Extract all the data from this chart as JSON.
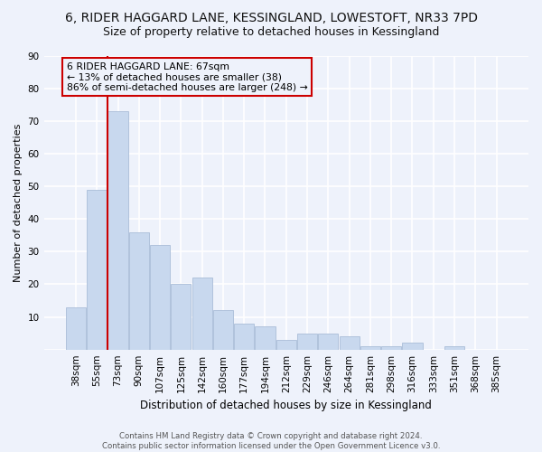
{
  "title": "6, RIDER HAGGARD LANE, KESSINGLAND, LOWESTOFT, NR33 7PD",
  "subtitle": "Size of property relative to detached houses in Kessingland",
  "xlabel": "Distribution of detached houses by size in Kessingland",
  "ylabel": "Number of detached properties",
  "categories": [
    "38sqm",
    "55sqm",
    "73sqm",
    "90sqm",
    "107sqm",
    "125sqm",
    "142sqm",
    "160sqm",
    "177sqm",
    "194sqm",
    "212sqm",
    "229sqm",
    "246sqm",
    "264sqm",
    "281sqm",
    "298sqm",
    "316sqm",
    "333sqm",
    "351sqm",
    "368sqm",
    "385sqm"
  ],
  "values": [
    13,
    49,
    73,
    36,
    32,
    20,
    22,
    12,
    8,
    7,
    3,
    5,
    5,
    4,
    1,
    1,
    2,
    0,
    1,
    0,
    0
  ],
  "bar_color": "#c8d8ee",
  "bar_edge_color": "#aabdd8",
  "vline_x_index": 2,
  "vline_color": "#cc0000",
  "annotation_line1": "6 RIDER HAGGARD LANE: 67sqm",
  "annotation_line2": "← 13% of detached houses are smaller (38)",
  "annotation_line3": "86% of semi-detached houses are larger (248) →",
  "ylim": [
    0,
    90
  ],
  "yticks": [
    0,
    10,
    20,
    30,
    40,
    50,
    60,
    70,
    80,
    90
  ],
  "background_color": "#eef2fb",
  "grid_color": "#ffffff",
  "title_fontsize": 10,
  "subtitle_fontsize": 9,
  "axis_fontsize": 8,
  "tick_fontsize": 7.5,
  "footer": "Contains HM Land Registry data © Crown copyright and database right 2024.\nContains public sector information licensed under the Open Government Licence v3.0."
}
